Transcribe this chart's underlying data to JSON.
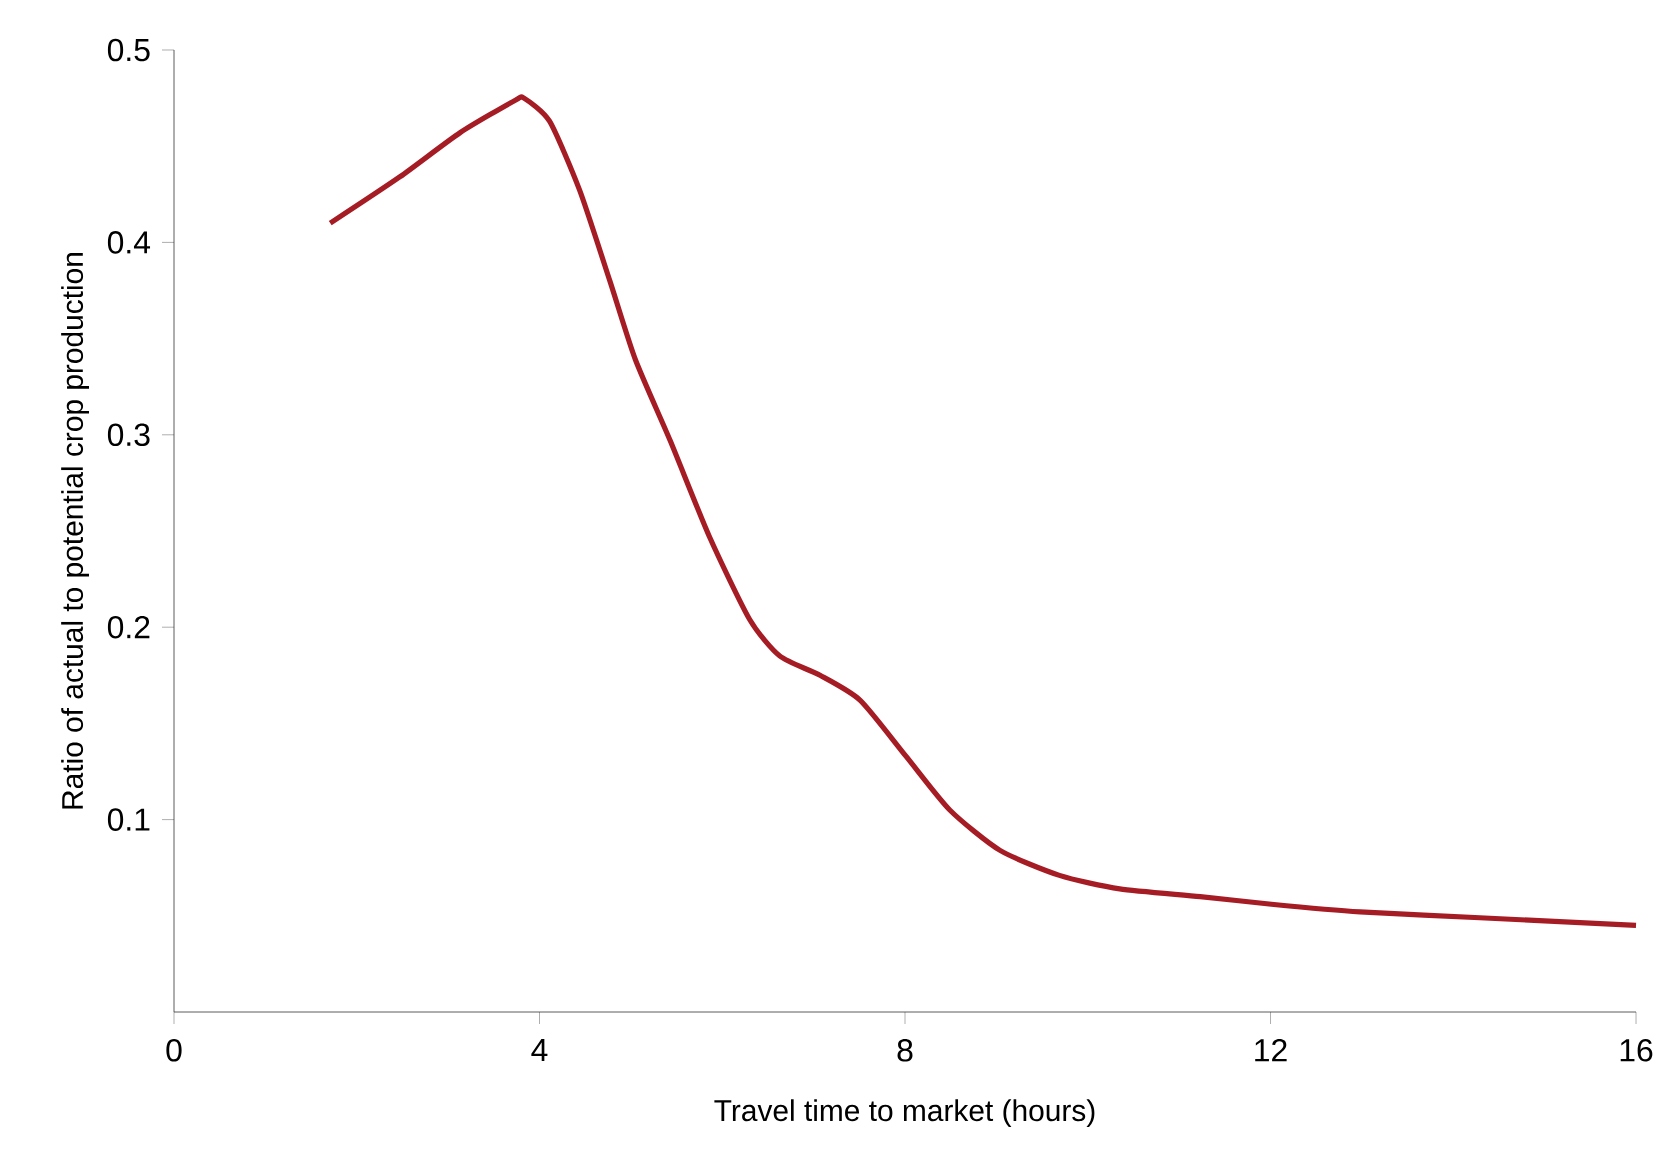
{
  "chart_data": {
    "type": "line",
    "xlabel": "Travel time to market (hours)",
    "ylabel": "Ratio of actual to potential crop production",
    "x": [
      1.71,
      2.47,
      3.13,
      3.74,
      3.83,
      4.11,
      4.44,
      4.77,
      5.05,
      5.43,
      5.86,
      6.3,
      6.63,
      7.07,
      7.51,
      8.01,
      8.49,
      9.04,
      9.69,
      10.35,
      11.23,
      12.01,
      12.98,
      14.29,
      16
    ],
    "series": [
      {
        "color": "#a51c24",
        "values": [
          0.41,
          0.434,
          0.457,
          0.474,
          0.475,
          0.463,
          0.427,
          0.38,
          0.339,
          0.297,
          0.247,
          0.204,
          0.185,
          0.175,
          0.162,
          0.133,
          0.105,
          0.084,
          0.071,
          0.064,
          0.06,
          0.056,
          0.052,
          0.049,
          0.045
        ]
      }
    ],
    "xlim": [
      0,
      16
    ],
    "ylim": [
      0,
      0.5
    ],
    "xticks": [
      0,
      4,
      8,
      12,
      16
    ],
    "yticks": [
      0.1,
      0.2,
      0.3,
      0.4,
      0.5
    ],
    "marker": "none",
    "line_style": "solid"
  }
}
